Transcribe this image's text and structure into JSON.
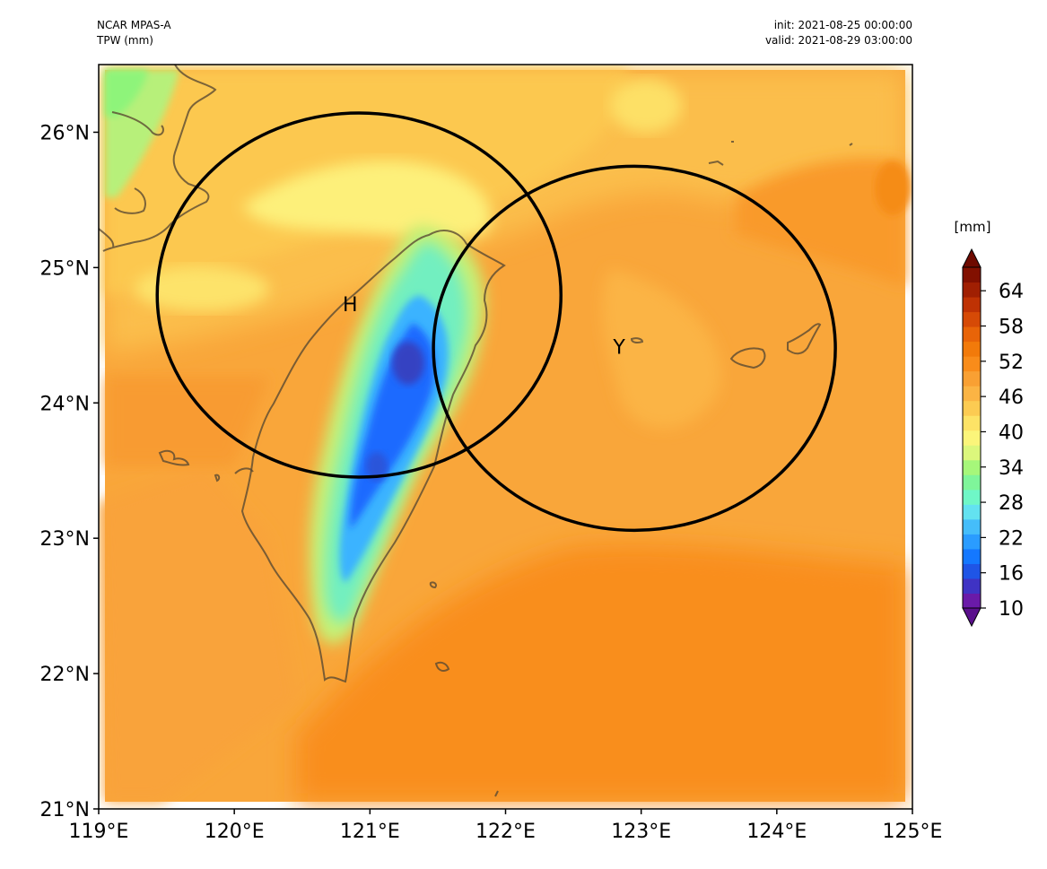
{
  "header": {
    "model": "NCAR MPAS-A",
    "field": "TPW (mm)",
    "init": "init: 2021-08-25 00:00:00",
    "valid": "valid: 2021-08-29 03:00:00"
  },
  "axes": {
    "x_ticks": [
      "119°E",
      "120°E",
      "121°E",
      "122°E",
      "123°E",
      "124°E",
      "125°E"
    ],
    "y_ticks": [
      "26°N",
      "25°N",
      "24°N",
      "23°N",
      "22°N",
      "21°N"
    ],
    "lon_range": [
      119,
      125
    ],
    "lat_range": [
      21,
      26.5
    ]
  },
  "circles": [
    {
      "label": "H",
      "center_lon": 120.92,
      "center_lat": 24.85
    },
    {
      "label": "Y",
      "center_lon": 122.95,
      "center_lat": 24.47
    }
  ],
  "colorbar": {
    "unit": "[mm]",
    "ticks": [
      "64",
      "58",
      "52",
      "46",
      "40",
      "34",
      "28",
      "22",
      "16",
      "10"
    ],
    "range": [
      10,
      68
    ],
    "colors": [
      "#6a1aa8",
      "#3f33c4",
      "#1f55e6",
      "#1478ff",
      "#2a9cff",
      "#45bdfa",
      "#63e2f0",
      "#6ff7c7",
      "#7ff59a",
      "#a6f77a",
      "#dcf77c",
      "#fbf57a",
      "#fde366",
      "#fccb52",
      "#fbb444",
      "#f9a033",
      "#f98c1a",
      "#f27a0a",
      "#e86408",
      "#d64a06",
      "#bf3204",
      "#a01f02",
      "#821000"
    ],
    "min_color": "#5a0f8c",
    "max_color": "#6e0a00"
  }
}
